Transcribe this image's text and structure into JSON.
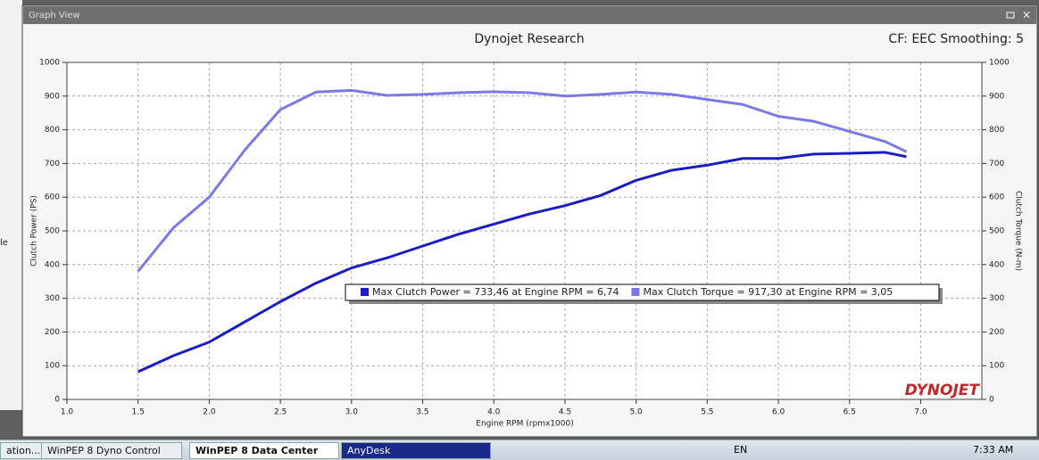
{
  "window": {
    "title": "Graph View",
    "side_text": "le"
  },
  "taskbar": {
    "items": [
      "ation...",
      "WinPEP 8 Dyno Control",
      "WinPEP 8 Data Center",
      "AnyDesk"
    ],
    "language": "EN",
    "clock": "7:33 AM"
  },
  "chart_data": {
    "type": "line",
    "title": "Dynojet Research",
    "subtitle": "CF: EEC Smoothing: 5",
    "x_label": "Engine RPM (rpmx1000)",
    "y_label": "Clutch Power (PS)",
    "y2_label": "Clutch Torque (N-m)",
    "logo": "DYNOJET",
    "x": [
      1.5,
      1.75,
      2.0,
      2.25,
      2.5,
      2.75,
      3.0,
      3.25,
      3.5,
      3.75,
      4.0,
      4.25,
      4.5,
      4.75,
      5.0,
      5.25,
      5.5,
      5.75,
      6.0,
      6.25,
      6.5,
      6.75,
      6.9
    ],
    "series": [
      {
        "name": "Max Clutch Power = 733,46 at Engine RPM = 6,74",
        "color": "#1c1cc4",
        "values": [
          82,
          130,
          170,
          230,
          290,
          345,
          390,
          420,
          455,
          490,
          520,
          550,
          575,
          605,
          650,
          680,
          695,
          715,
          715,
          728,
          730,
          733,
          720
        ]
      },
      {
        "name": "Max Clutch Torque = 917,30 at Engine RPM = 3,05",
        "color": "#7a7ae6",
        "axis": "y2",
        "values": [
          380,
          510,
          600,
          740,
          860,
          912,
          917,
          902,
          905,
          910,
          913,
          910,
          900,
          905,
          912,
          905,
          890,
          875,
          840,
          825,
          795,
          765,
          735
        ]
      }
    ],
    "xlim": [
      1.0,
      7.43
    ],
    "xticks": [
      {
        "value": 1,
        "label": "1.0"
      },
      1.5,
      {
        "value": 2,
        "label": "2.0"
      },
      2.5,
      {
        "value": 3,
        "label": "3.0"
      },
      3.5,
      {
        "value": 4,
        "label": "4.0"
      },
      4.5,
      {
        "value": 5,
        "label": "5.0"
      },
      5.5,
      {
        "value": 6,
        "label": "6.0"
      },
      6.5,
      {
        "value": 7,
        "label": "7.0"
      }
    ],
    "ylim": [
      0,
      1000
    ],
    "yticks": [
      0,
      100,
      200,
      300,
      400,
      500,
      600,
      700,
      800,
      900,
      1000
    ],
    "y2lim": [
      0,
      1000
    ],
    "y2ticks": [
      0,
      100,
      200,
      300,
      400,
      500,
      600,
      700,
      800,
      900,
      1000
    ],
    "grid": true
  }
}
